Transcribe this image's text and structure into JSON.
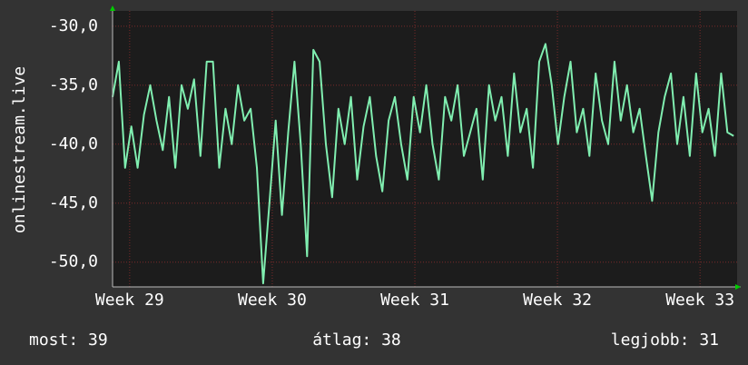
{
  "chart_data": {
    "type": "line",
    "ylabel": "onlinestream.live",
    "x": [
      28.88,
      28.924,
      28.968,
      29.012,
      29.056,
      29.1,
      29.144,
      29.188,
      29.232,
      29.276,
      29.32,
      29.364,
      29.408,
      29.452,
      29.496,
      29.54,
      29.584,
      29.628,
      29.672,
      29.716,
      29.76,
      29.804,
      29.848,
      29.892,
      29.936,
      29.98,
      30.024,
      30.068,
      30.112,
      30.156,
      30.2,
      30.244,
      30.288,
      30.332,
      30.376,
      30.42,
      30.464,
      30.508,
      30.552,
      30.596,
      30.64,
      30.684,
      30.728,
      30.772,
      30.816,
      30.86,
      30.904,
      30.948,
      30.992,
      31.036,
      31.08,
      31.124,
      31.168,
      31.212,
      31.256,
      31.3,
      31.344,
      31.388,
      31.432,
      31.476,
      31.52,
      31.564,
      31.608,
      31.652,
      31.696,
      31.74,
      31.784,
      31.828,
      31.872,
      31.916,
      31.96,
      32.004,
      32.048,
      32.092,
      32.136,
      32.18,
      32.224,
      32.268,
      32.312,
      32.356,
      32.4,
      32.444,
      32.488,
      32.532,
      32.576,
      32.62,
      32.664,
      32.708,
      32.752,
      32.796,
      32.84,
      32.884,
      32.928,
      32.972,
      33.016,
      33.06,
      33.104,
      33.148,
      33.192,
      33.236
    ],
    "series": [
      {
        "color": "#80eeb0",
        "values": [
          -36,
          -33,
          -42,
          -38.5,
          -42,
          -37.5,
          -35,
          -38,
          -40.5,
          -36,
          -42,
          -35,
          -37,
          -34.5,
          -41,
          -33,
          -33,
          -42,
          -37,
          -40,
          -35,
          -38,
          -37,
          -42,
          -51.8,
          -45,
          -38,
          -46,
          -39,
          -33,
          -40,
          -49.5,
          -32,
          -33,
          -40,
          -44.5,
          -37,
          -40,
          -36,
          -43,
          -38.5,
          -36,
          -41,
          -44,
          -38,
          -36,
          -40,
          -43,
          -36,
          -39,
          -35,
          -40,
          -43,
          -36,
          -38,
          -35,
          -41,
          -39,
          -37,
          -43,
          -35,
          -38,
          -36,
          -41,
          -34,
          -39,
          -37,
          -42,
          -33,
          -31.5,
          -35,
          -40,
          -36,
          -33,
          -39,
          -37,
          -41,
          -34,
          -38,
          -40,
          -33,
          -38,
          -35,
          -39,
          -37,
          -41,
          -44.8,
          -39,
          -36,
          -34,
          -40,
          -36,
          -41,
          -34,
          -39,
          -37,
          -41,
          -34,
          -39,
          -39.3
        ]
      }
    ],
    "xlim": [
      28.88,
      33.26
    ],
    "xticks": [
      {
        "value": 29,
        "label": "Week 29"
      },
      {
        "value": 30,
        "label": "Week 30"
      },
      {
        "value": 31,
        "label": "Week 31"
      },
      {
        "value": 32,
        "label": "Week 32"
      },
      {
        "value": 33,
        "label": "Week 33"
      }
    ],
    "ylim": [
      -52.1,
      -28.7
    ],
    "yticks": [
      {
        "value": -30,
        "label": "-30,0"
      },
      {
        "value": -35,
        "label": "-35,0"
      },
      {
        "value": -40,
        "label": "-40,0"
      },
      {
        "value": -45,
        "label": "-45,0"
      },
      {
        "value": -50,
        "label": "-50,0"
      }
    ],
    "grid": true,
    "footer": [
      "most: 39",
      "átlag: 38",
      "legjobb: 31"
    ]
  }
}
